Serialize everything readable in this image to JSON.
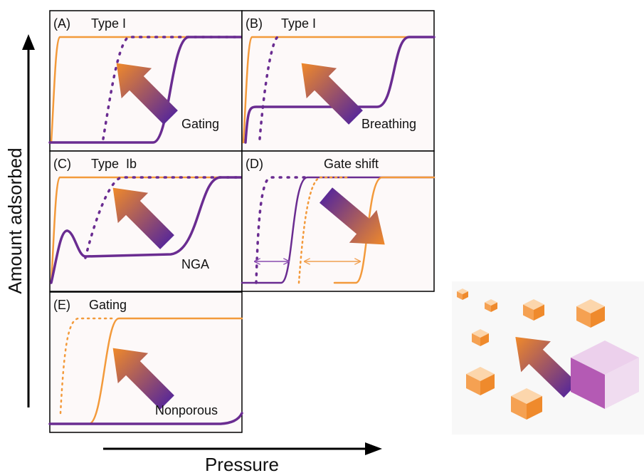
{
  "axes": {
    "y_label": "Amount adsorbed",
    "x_label": "Pressure"
  },
  "panels": [
    {
      "label": "(A)",
      "title": "Type I",
      "annotation": "Gating"
    },
    {
      "label": "(B)",
      "title": "Type I",
      "annotation": "Breathing"
    },
    {
      "label": "(C)",
      "title": "Type  Ib",
      "annotation": "NGA"
    },
    {
      "label": "(D)",
      "title": "Gate shift"
    },
    {
      "label": "(E)",
      "title": "Gating",
      "annotation": "Nonporous"
    }
  ]
}
